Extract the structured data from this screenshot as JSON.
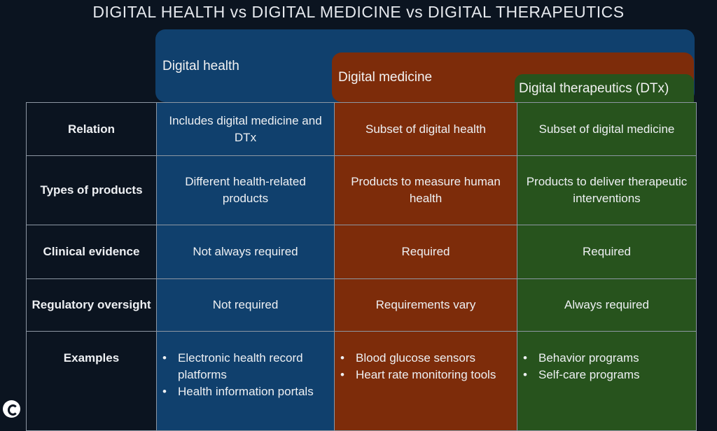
{
  "title": "DIGITAL HEALTH vs DIGITAL MEDICINE vs DIGITAL THERAPEUTICS",
  "colors": {
    "background": "#0b1420",
    "digital_health": "#10406d",
    "digital_medicine": "#7d2c0a",
    "digital_therapeutics": "#27531d",
    "grid": "#8d97a3"
  },
  "bands": {
    "health": "Digital health",
    "medicine": "Digital medicine",
    "dtx": "Digital therapeutics (DTx)"
  },
  "rows": [
    {
      "header": "Relation",
      "health": "Includes digital medicine and DTx",
      "medicine": "Subset of digital health",
      "dtx": "Subset of digital medicine"
    },
    {
      "header": "Types of products",
      "health": "Different health-related products",
      "medicine": "Products to measure human health",
      "dtx": "Products to deliver therapeutic interventions"
    },
    {
      "header": "Clinical evidence",
      "health": "Not always required",
      "medicine": "Required",
      "dtx": "Required"
    },
    {
      "header": "Regulatory oversight",
      "health": "Not required",
      "medicine": "Requirements vary",
      "dtx": "Always required"
    }
  ],
  "examples": {
    "header": "Examples",
    "health": [
      "Electronic health record platforms",
      "Health information portals"
    ],
    "medicine": [
      "Blood glucose sensors",
      "Heart rate monitoring tools"
    ],
    "dtx": [
      "Behavior programs",
      "Self-care programs"
    ]
  },
  "logo_icon": "brand-logo-icon"
}
